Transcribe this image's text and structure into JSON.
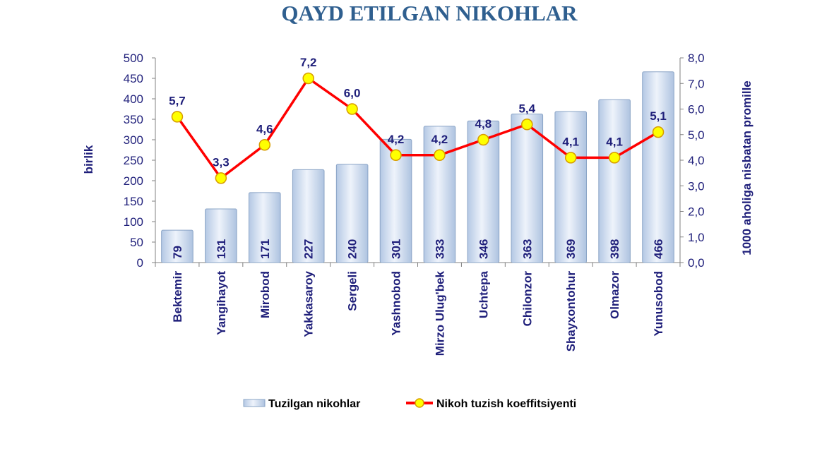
{
  "chart_data": {
    "type": "bar",
    "title": "QAYD ETILGAN NIKOHLAR",
    "categories": [
      "Bektemir",
      "Yangihayot",
      "Mirobod",
      "Yakkasaroy",
      "Sergeli",
      "Yashnobod",
      "Mirzo Ulug'bek",
      "Uchtepa",
      "Chilonzor",
      "Shayxontohur",
      "Olmazor",
      "Yunusobod"
    ],
    "series": [
      {
        "name": "Tuzilgan nikohlar",
        "type": "bar",
        "axis": "left",
        "values": [
          79,
          131,
          171,
          227,
          240,
          301,
          333,
          346,
          363,
          369,
          398,
          466
        ],
        "labels": [
          "79",
          "131",
          "171",
          "227",
          "240",
          "301",
          "333",
          "346",
          "363",
          "369",
          "398",
          "466"
        ]
      },
      {
        "name": "Nikoh tuzish koeffitsiyenti",
        "type": "line",
        "axis": "right",
        "values": [
          5.7,
          3.3,
          4.6,
          7.2,
          6.0,
          4.2,
          4.2,
          4.8,
          5.4,
          4.1,
          4.1,
          5.1
        ],
        "labels": [
          "5,7",
          "3,3",
          "4,6",
          "7,2",
          "6,0",
          "4,2",
          "4,2",
          "4,8",
          "5,4",
          "4,1",
          "4,1",
          "5,1"
        ]
      }
    ],
    "ylabel": "birlik",
    "y2label": "1000 aholiga nisbatan promille",
    "ylim": [
      0,
      500
    ],
    "y2lim": [
      0,
      8
    ],
    "yticks": [
      "0",
      "50",
      "100",
      "150",
      "200",
      "250",
      "300",
      "350",
      "400",
      "450",
      "500"
    ],
    "y2ticks": [
      "0,0",
      "1,0",
      "2,0",
      "3,0",
      "4,0",
      "5,0",
      "6,0",
      "7,0",
      "8,0"
    ],
    "legend": "bottom",
    "grid": false,
    "colors": {
      "title": "#2f5f8f",
      "text": "#1f1f7a",
      "bar_fill": "#c5d5ea",
      "bar_edge": "#8aa4c6",
      "line": "#ff0000",
      "marker": "#ffff00",
      "marker_edge": "#d79c00",
      "axis": "#808080"
    }
  }
}
